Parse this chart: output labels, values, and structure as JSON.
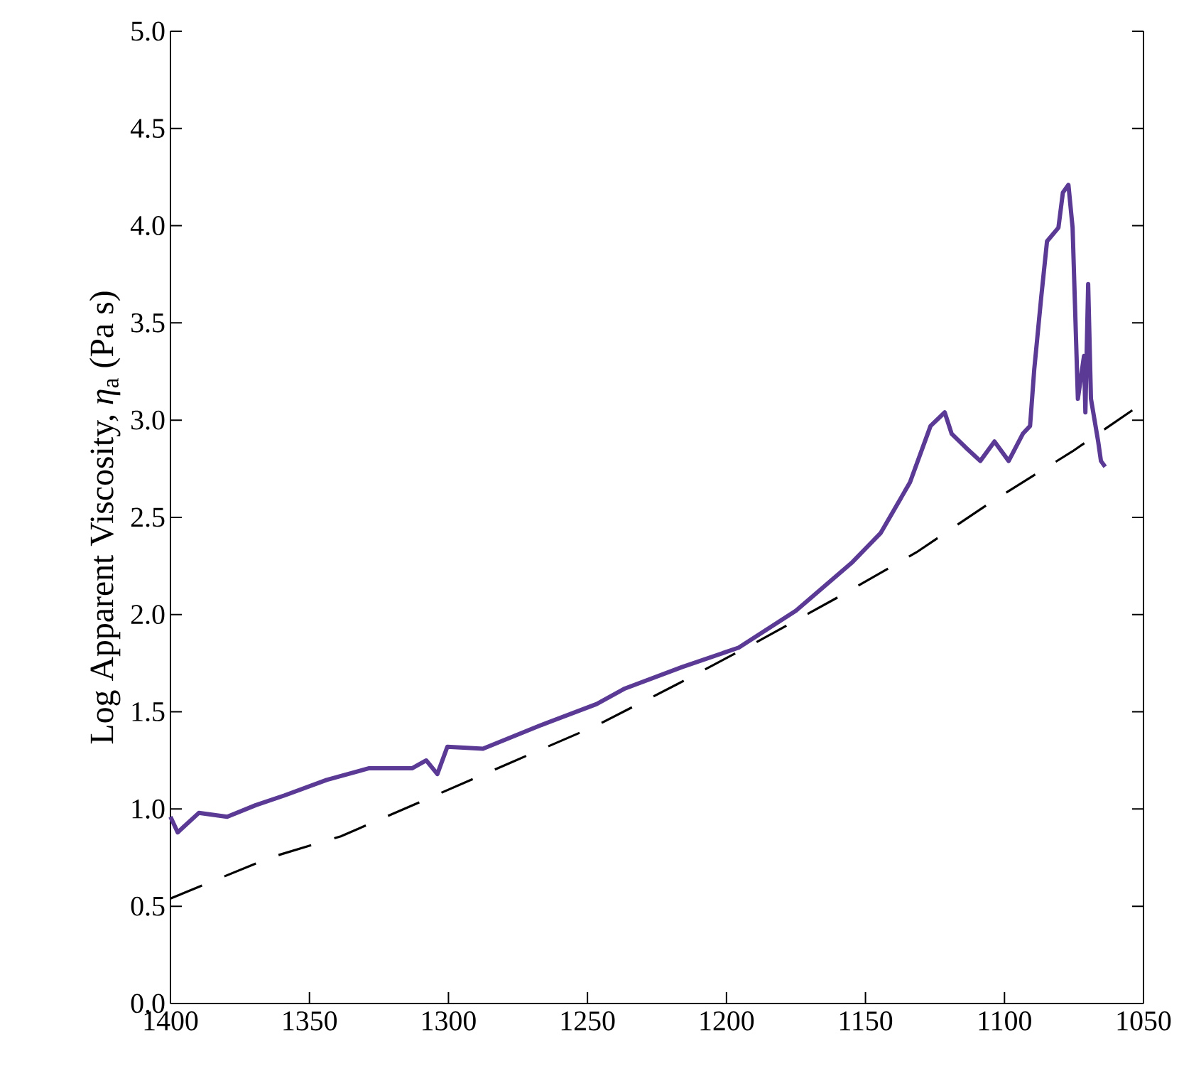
{
  "chart_data": {
    "type": "line",
    "ylabel": "Log Apparent Viscosity, *η*$_{a}$ (Pa s)",
    "xlim": [
      1400,
      1050
    ],
    "ylim": [
      0,
      5
    ],
    "xticks": [
      1400,
      1350,
      1300,
      1250,
      1200,
      1150,
      1100,
      1050
    ],
    "yticks": [
      {
        "value": 0,
        "label": "0.0"
      },
      {
        "value": 0.5,
        "label": "0.5"
      },
      {
        "value": 1,
        "label": "1.0"
      },
      {
        "value": 1.5,
        "label": "1.5"
      },
      {
        "value": 2,
        "label": "2.0"
      },
      {
        "value": 2.5,
        "label": "2.5"
      },
      {
        "value": 3,
        "label": "3.0"
      },
      {
        "value": 3.5,
        "label": "3.5"
      },
      {
        "value": 4,
        "label": "4.0"
      },
      {
        "value": 4.5,
        "label": "4.5"
      },
      {
        "value": 5,
        "label": "5.0"
      }
    ],
    "series": [
      {
        "color": "#5b3a96",
        "line_style": "solid",
        "x": [
          1400,
          1397.4,
          1389.8,
          1379.6,
          1369.3,
          1359,
          1343.8,
          1328.5,
          1313,
          1308,
          1304,
          1300.4,
          1287.6,
          1267,
          1246.7,
          1236.5,
          1216,
          1195.6,
          1175,
          1154.7,
          1144.5,
          1134,
          1126.6,
          1121.5,
          1119,
          1114,
          1108.7,
          1103.6,
          1098.5,
          1093.4,
          1090.8,
          1089.3,
          1086.8,
          1084.7,
          1080.6,
          1079,
          1077,
          1075.5,
          1073.6,
          1071.4,
          1070.9,
          1069.9,
          1068.9,
          1066.3,
          1065.3,
          1063.8
        ],
        "values": [
          0.96,
          0.88,
          0.98,
          0.96,
          1.02,
          1.07,
          1.15,
          1.21,
          1.21,
          1.25,
          1.18,
          1.32,
          1.31,
          1.43,
          1.54,
          1.62,
          1.73,
          1.83,
          2.02,
          2.27,
          2.42,
          2.68,
          2.97,
          3.04,
          2.93,
          2.86,
          2.79,
          2.89,
          2.79,
          2.93,
          2.97,
          3.26,
          3.63,
          3.92,
          3.99,
          4.17,
          4.21,
          3.99,
          3.11,
          3.33,
          3.04,
          3.7,
          3.11,
          2.89,
          2.79,
          2.76
        ]
      },
      {
        "color": "#000000",
        "line_style": "dashed",
        "x": [
          1400,
          1364.2,
          1338.7,
          1308,
          1277.4,
          1246.7,
          1218,
          1189,
          1159.8,
          1131.7,
          1103.6,
          1075.5,
          1050
        ],
        "values": [
          0.54,
          0.75,
          0.86,
          1.05,
          1.24,
          1.43,
          1.64,
          1.86,
          2.09,
          2.32,
          2.59,
          2.84,
          3.09
        ]
      }
    ]
  }
}
